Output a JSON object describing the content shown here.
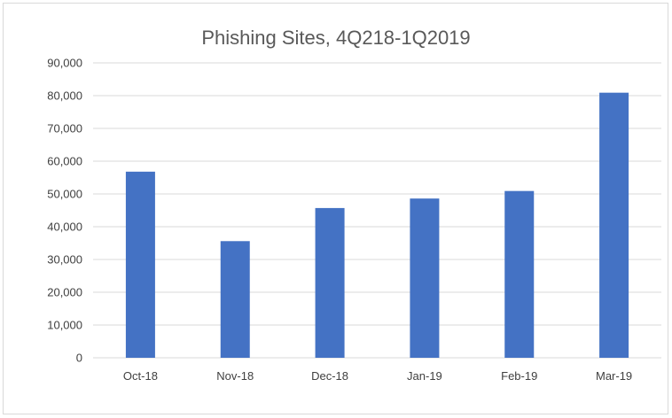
{
  "chart_data": {
    "type": "bar",
    "title": "Phishing Sites, 4Q218-1Q2019",
    "xlabel": "",
    "ylabel": "",
    "categories": [
      "Oct-18",
      "Nov-18",
      "Dec-18",
      "Jan-19",
      "Feb-19",
      "Mar-19"
    ],
    "values": [
      56800,
      35600,
      45700,
      48600,
      50900,
      80900
    ],
    "ylim": [
      0,
      90000
    ],
    "y_ticks": [
      0,
      10000,
      20000,
      30000,
      40000,
      50000,
      60000,
      70000,
      80000,
      90000
    ],
    "y_tick_labels": [
      "0",
      "10,000",
      "20,000",
      "30,000",
      "40,000",
      "50,000",
      "60,000",
      "70,000",
      "80,000",
      "90,000"
    ],
    "grid": true,
    "legend": "none",
    "bar_color": "#4472c4"
  }
}
